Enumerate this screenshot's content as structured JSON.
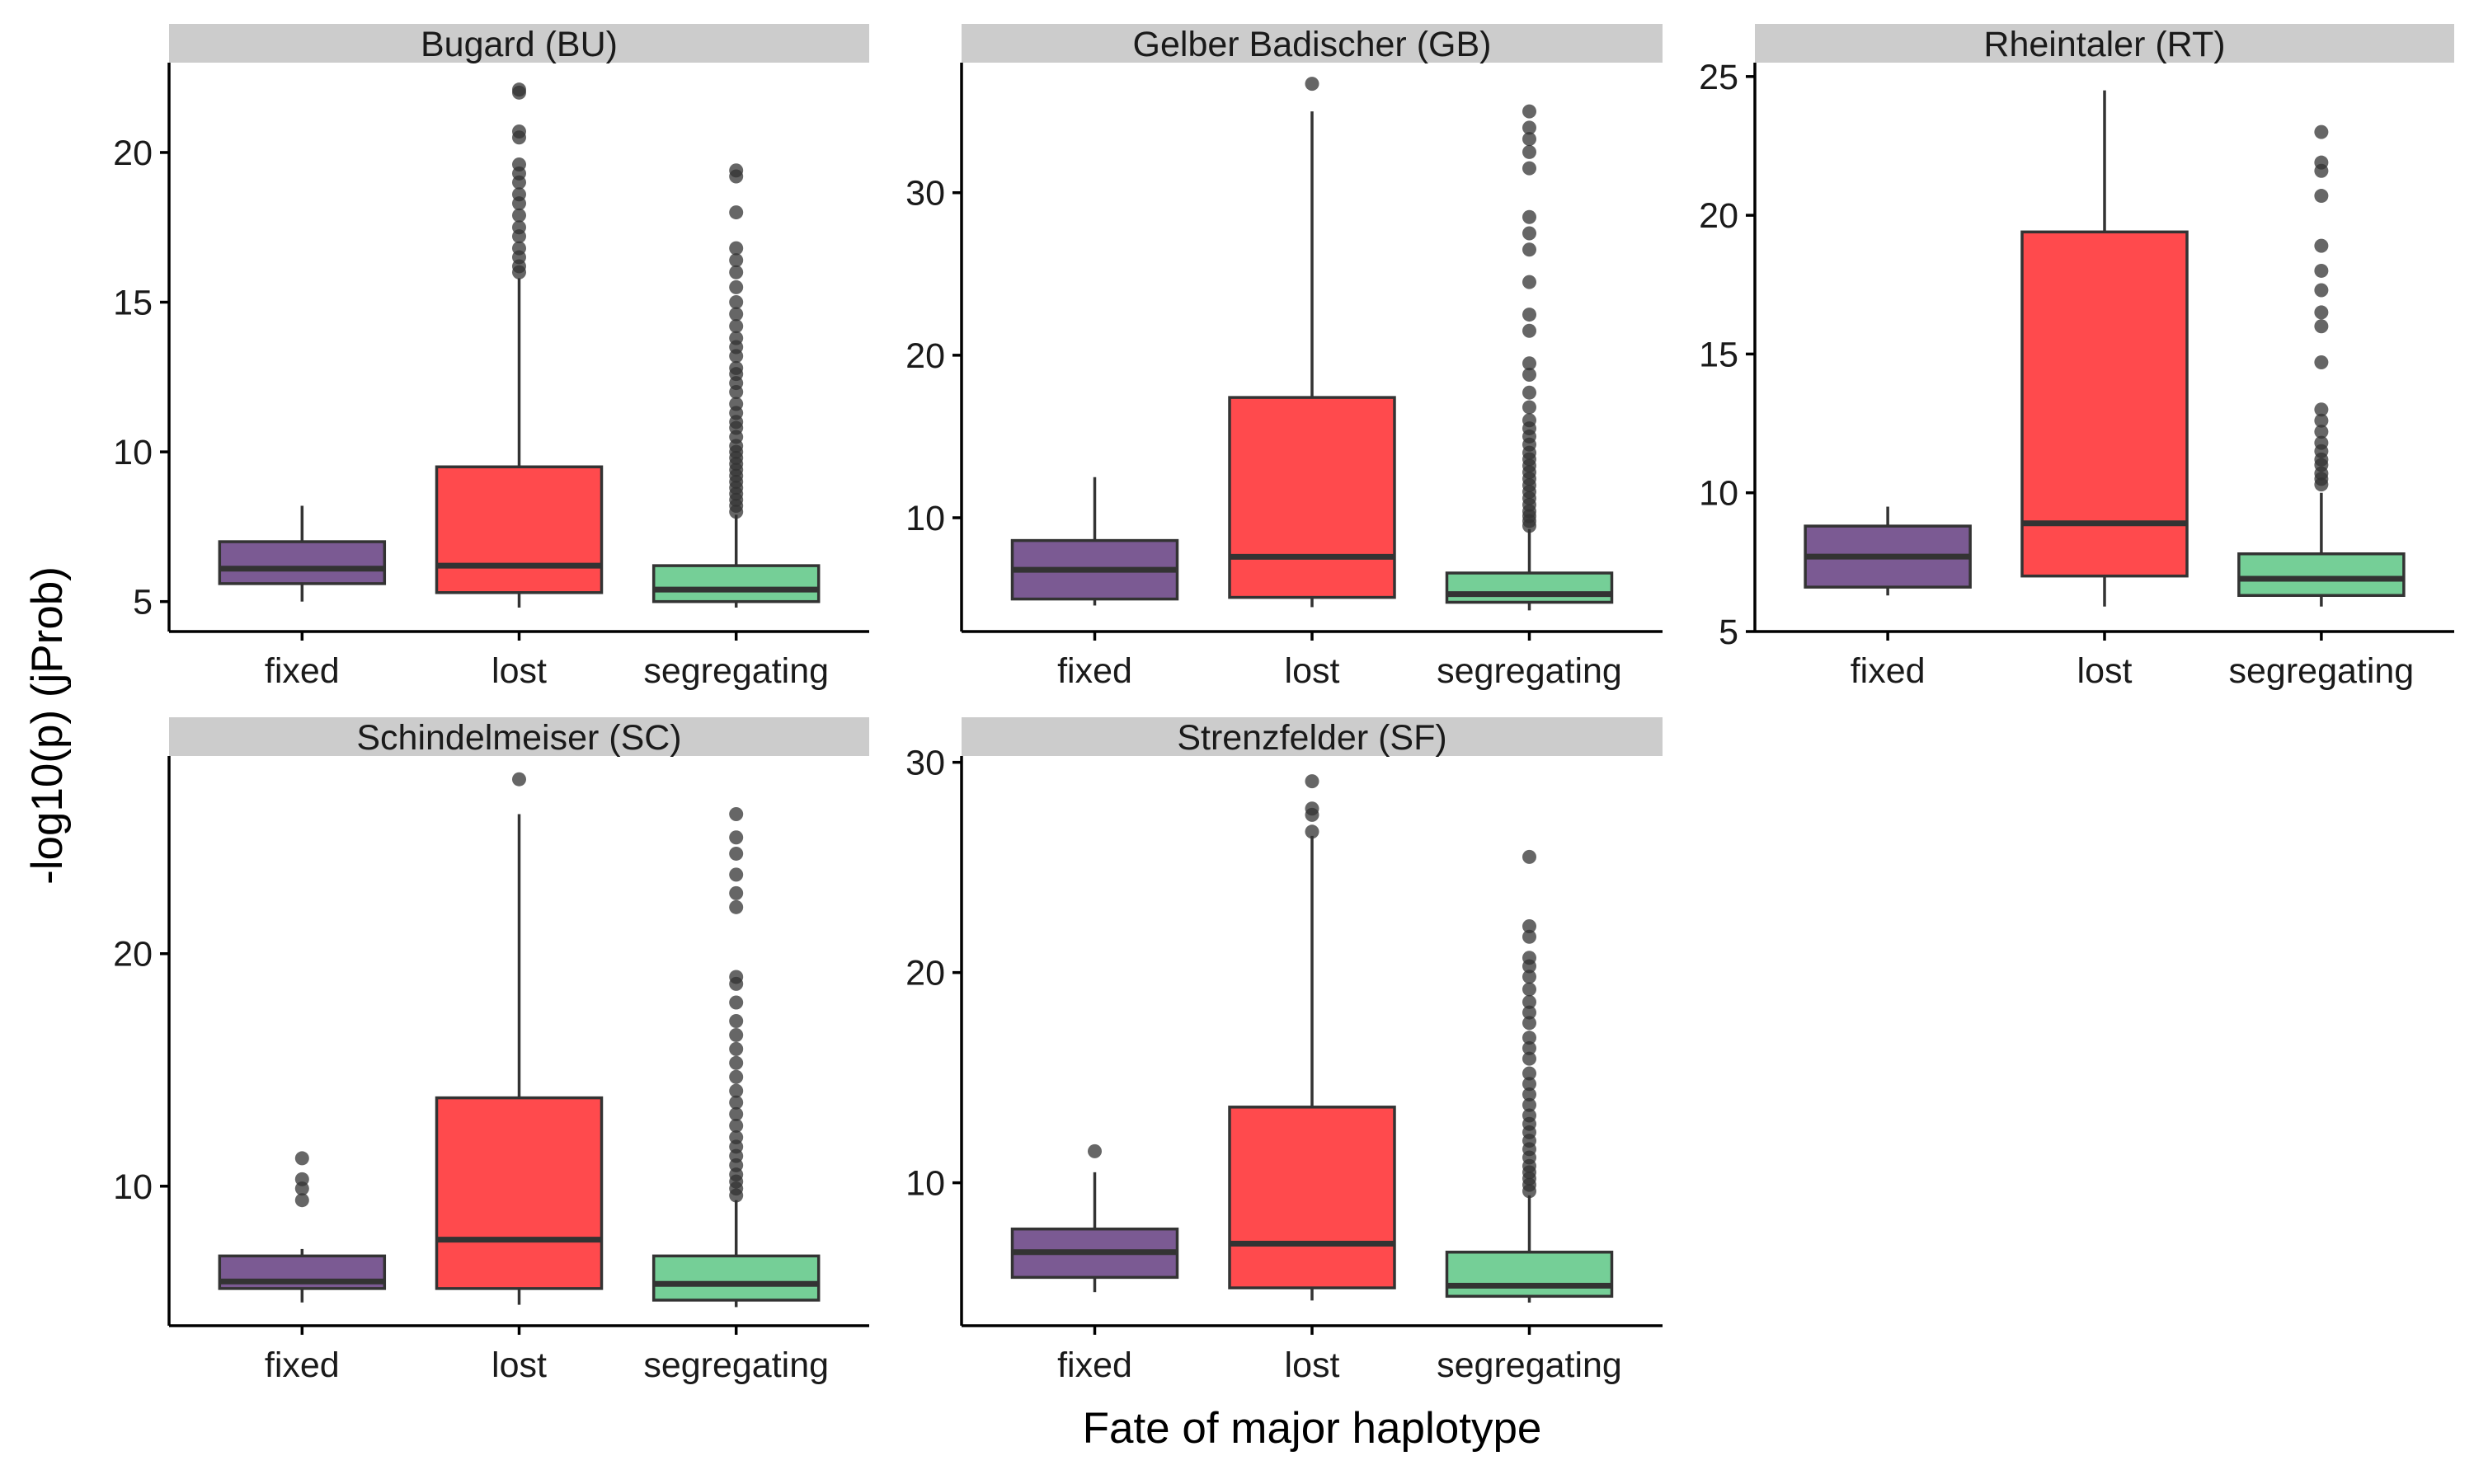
{
  "chart_data": {
    "type": "boxplot",
    "xlabel": "Fate of major haplotype",
    "ylabel": "-log10(p) (jProb)",
    "categories": [
      "fixed",
      "lost",
      "segregating"
    ],
    "colors": {
      "fixed": "#7B5A93",
      "lost": "#FF4A4D",
      "segregating": "#75CF97"
    },
    "panels": [
      {
        "title": "Bugard (BU)",
        "ylim": [
          4,
          23
        ],
        "yticks": [
          5,
          10,
          15,
          20
        ],
        "boxes": [
          {
            "category": "fixed",
            "q1": 5.6,
            "median": 6.1,
            "q3": 7.0,
            "whisker_low": 5.0,
            "whisker_high": 8.2,
            "outliers": []
          },
          {
            "category": "lost",
            "q1": 5.3,
            "median": 6.2,
            "q3": 9.5,
            "whisker_low": 4.8,
            "whisker_high": 15.8,
            "outliers": [
              16.0,
              16.2,
              16.5,
              16.8,
              17.2,
              17.5,
              17.9,
              18.3,
              18.6,
              19.0,
              19.3,
              19.6,
              20.5,
              20.7,
              22.0,
              22.1
            ]
          },
          {
            "category": "segregating",
            "q1": 5.0,
            "median": 5.4,
            "q3": 6.2,
            "whisker_low": 4.8,
            "whisker_high": 7.9,
            "outliers": [
              8.0,
              8.2,
              8.4,
              8.6,
              8.8,
              9.0,
              9.2,
              9.4,
              9.6,
              9.8,
              10.0,
              10.2,
              10.5,
              10.8,
              11.0,
              11.3,
              11.6,
              12.0,
              12.3,
              12.6,
              12.8,
              13.2,
              13.5,
              13.8,
              14.2,
              14.6,
              15.0,
              15.5,
              16.0,
              16.4,
              16.8,
              18.0,
              19.2,
              19.4
            ]
          }
        ]
      },
      {
        "title": "Gelber Badischer (GB)",
        "ylim": [
          3,
          38
        ],
        "yticks": [
          10,
          20,
          30
        ],
        "boxes": [
          {
            "category": "fixed",
            "q1": 5.0,
            "median": 6.8,
            "q3": 8.6,
            "whisker_low": 4.6,
            "whisker_high": 12.5,
            "outliers": []
          },
          {
            "category": "lost",
            "q1": 5.1,
            "median": 7.6,
            "q3": 17.4,
            "whisker_low": 4.5,
            "whisker_high": 35.0,
            "outliers": [
              36.7
            ]
          },
          {
            "category": "segregating",
            "q1": 4.8,
            "median": 5.3,
            "q3": 6.6,
            "whisker_low": 4.3,
            "whisker_high": 9.3,
            "outliers": [
              9.5,
              9.8,
              10.1,
              10.4,
              10.8,
              11.2,
              11.6,
              12.0,
              12.4,
              12.8,
              13.2,
              13.6,
              14.0,
              14.5,
              15.0,
              15.5,
              16.0,
              16.8,
              17.7,
              18.8,
              19.5,
              21.5,
              22.5,
              24.5,
              26.5,
              27.5,
              28.5,
              31.5,
              32.5,
              33.3,
              34.0,
              35.0
            ]
          }
        ]
      },
      {
        "title": "Rheintaler (RT)",
        "ylim": [
          5,
          25.5
        ],
        "yticks": [
          5,
          10,
          15,
          20,
          25
        ],
        "boxes": [
          {
            "category": "fixed",
            "q1": 6.6,
            "median": 7.7,
            "q3": 8.8,
            "whisker_low": 6.3,
            "whisker_high": 9.5,
            "outliers": []
          },
          {
            "category": "lost",
            "q1": 7.0,
            "median": 8.9,
            "q3": 19.4,
            "whisker_low": 5.9,
            "whisker_high": 24.5,
            "outliers": []
          },
          {
            "category": "segregating",
            "q1": 6.3,
            "median": 6.9,
            "q3": 7.8,
            "whisker_low": 5.9,
            "whisker_high": 10.0,
            "outliers": [
              10.3,
              10.5,
              10.7,
              11.0,
              11.2,
              11.5,
              11.8,
              12.2,
              12.6,
              13.0,
              14.7,
              16.0,
              16.5,
              17.3,
              18.0,
              18.9,
              20.7,
              21.6,
              21.9,
              23.0
            ]
          }
        ]
      },
      {
        "title": "Schindelmeiser (SC)",
        "ylim": [
          4,
          28.5
        ],
        "yticks": [
          10,
          20
        ],
        "boxes": [
          {
            "category": "fixed",
            "q1": 5.6,
            "median": 5.9,
            "q3": 7.0,
            "whisker_low": 5.0,
            "whisker_high": 7.3,
            "outliers": [
              9.4,
              9.9,
              10.3,
              11.2
            ]
          },
          {
            "category": "lost",
            "q1": 5.6,
            "median": 7.7,
            "q3": 13.8,
            "whisker_low": 4.9,
            "whisker_high": 26.0,
            "outliers": [
              27.5
            ]
          },
          {
            "category": "segregating",
            "q1": 5.1,
            "median": 5.8,
            "q3": 7.0,
            "whisker_low": 4.8,
            "whisker_high": 9.4,
            "outliers": [
              9.6,
              9.9,
              10.2,
              10.5,
              10.9,
              11.3,
              11.7,
              12.1,
              12.6,
              13.1,
              13.6,
              14.1,
              14.7,
              15.3,
              15.9,
              16.5,
              17.1,
              17.9,
              18.7,
              19.0,
              22.0,
              22.6,
              23.4,
              24.3,
              25.0,
              26.0
            ]
          }
        ]
      },
      {
        "title": "Strenzfelder (SF)",
        "ylim": [
          3.2,
          30.3
        ],
        "yticks": [
          10,
          20,
          30
        ],
        "boxes": [
          {
            "category": "fixed",
            "q1": 5.5,
            "median": 6.7,
            "q3": 7.8,
            "whisker_low": 4.8,
            "whisker_high": 10.5,
            "outliers": [
              11.5
            ]
          },
          {
            "category": "lost",
            "q1": 5.0,
            "median": 7.1,
            "q3": 13.6,
            "whisker_low": 4.4,
            "whisker_high": 26.5,
            "outliers": [
              26.7,
              27.5,
              27.8,
              29.1
            ]
          },
          {
            "category": "segregating",
            "q1": 4.6,
            "median": 5.1,
            "q3": 6.7,
            "whisker_low": 4.3,
            "whisker_high": 9.4,
            "outliers": [
              9.6,
              9.9,
              10.2,
              10.5,
              10.8,
              11.2,
              11.6,
              12.0,
              12.4,
              12.8,
              13.2,
              13.7,
              14.2,
              14.7,
              15.2,
              15.9,
              16.4,
              16.9,
              17.6,
              18.1,
              18.6,
              19.2,
              19.8,
              20.3,
              20.7,
              21.7,
              22.2,
              25.5
            ]
          }
        ]
      }
    ]
  }
}
